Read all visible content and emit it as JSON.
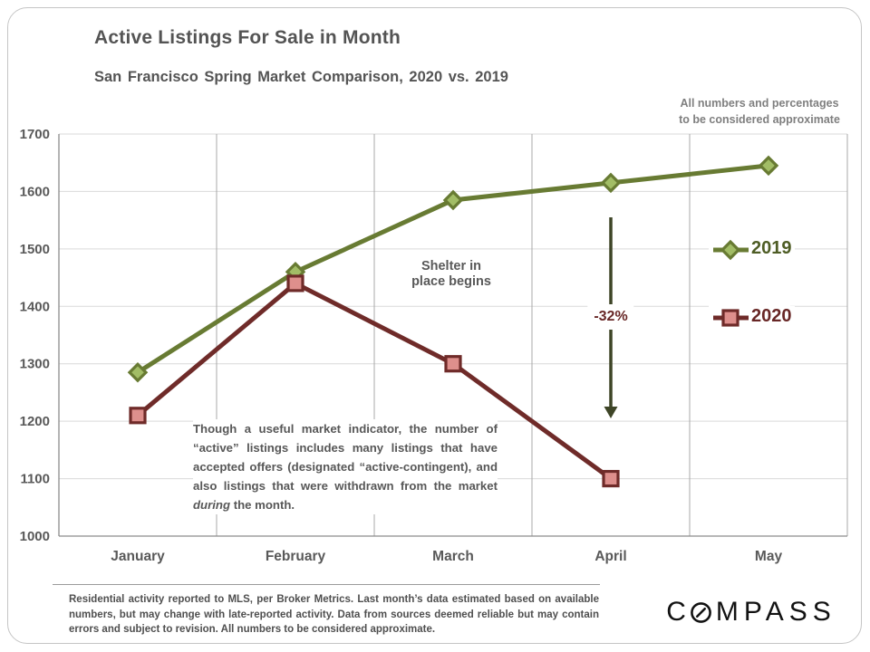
{
  "slide": {
    "title": "Active Listings For Sale in Month",
    "subtitle": "San Francisco Spring Market Comparison,  2020 vs. 2019",
    "top_note_line1": "All numbers and percentages",
    "top_note_line2": "to be considered approximate"
  },
  "chart_data": {
    "type": "line",
    "title": "Active Listings For Sale in Month",
    "subtitle": "San Francisco Spring Market Comparison, 2020 vs. 2019",
    "categories": [
      "January",
      "February",
      "March",
      "April",
      "May"
    ],
    "series": [
      {
        "name": "2019",
        "values": [
          1285,
          1460,
          1585,
          1615,
          1645
        ],
        "color": "#687b33",
        "marker": "diamond",
        "marker_fill": "#a2bd66",
        "label_color": "#4e5d25"
      },
      {
        "name": "2020",
        "values": [
          1210,
          1440,
          1300,
          1100,
          null
        ],
        "color": "#6f2b29",
        "marker": "square",
        "marker_fill": "#de8f8c",
        "label_color": "#682726"
      }
    ],
    "ylim": [
      1000,
      1700
    ],
    "ytick_step": 100,
    "xlabel": "",
    "ylabel": "",
    "grid": "horizontal-and-vertical",
    "legend_position": "right-inside",
    "annotations": {
      "shelter_line1": "Shelter in",
      "shelter_line2": "place begins",
      "arrow": {
        "category": "April",
        "from_value": 1555,
        "to_value": 1205,
        "label": "-32%"
      }
    },
    "style": {
      "grid_color": "#d9d9d9",
      "vgrid_color": "#a8a8a8",
      "axis_color": "#8c8c8c",
      "tick_color": "#595959",
      "arrow_color": "#3e4527"
    }
  },
  "body_note": {
    "text_before_italic": "Though a useful market indicator, the number of “active” listings includes many listings that have accepted offers (designated “active-contingent), and also listings that were withdrawn from the market ",
    "italic_word": "during",
    "text_after_italic": " the month."
  },
  "footer": {
    "disclaimer": "Residential activity reported to MLS, per Broker Metrics. Last month’s data estimated based on available numbers, but may change with late-reported activity. Data from sources deemed reliable but may contain errors and subject to revision. All numbers to be considered approximate.",
    "logo_first_letter": "C",
    "logo_rest": "MPASS"
  }
}
